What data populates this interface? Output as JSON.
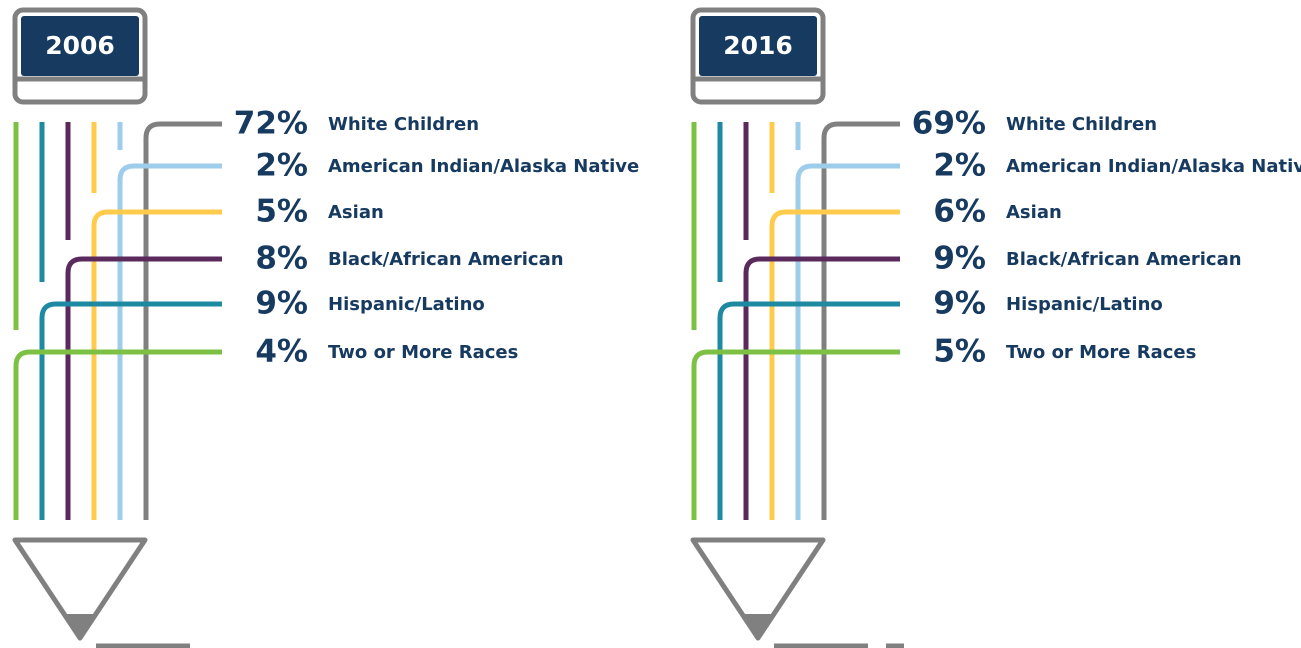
{
  "panels": [
    {
      "year": "2006",
      "items": [
        {
          "percent": "72%",
          "label": "White Children"
        },
        {
          "percent": "2%",
          "label": "American Indian/Alaska Native"
        },
        {
          "percent": "5%",
          "label": "Asian"
        },
        {
          "percent": "8%",
          "label": "Black/African American"
        },
        {
          "percent": "9%",
          "label": "Hispanic/Latino"
        },
        {
          "percent": "4%",
          "label": "Two or More Races"
        }
      ]
    },
    {
      "year": "2016",
      "items": [
        {
          "percent": "69%",
          "label": "White Children"
        },
        {
          "percent": "2%",
          "label": "American Indian/Alaska Native"
        },
        {
          "percent": "6%",
          "label": "Asian"
        },
        {
          "percent": "9%",
          "label": "Black/African American"
        },
        {
          "percent": "9%",
          "label": "Hispanic/Latino"
        },
        {
          "percent": "5%",
          "label": "Two or More Races"
        }
      ]
    }
  ]
}
